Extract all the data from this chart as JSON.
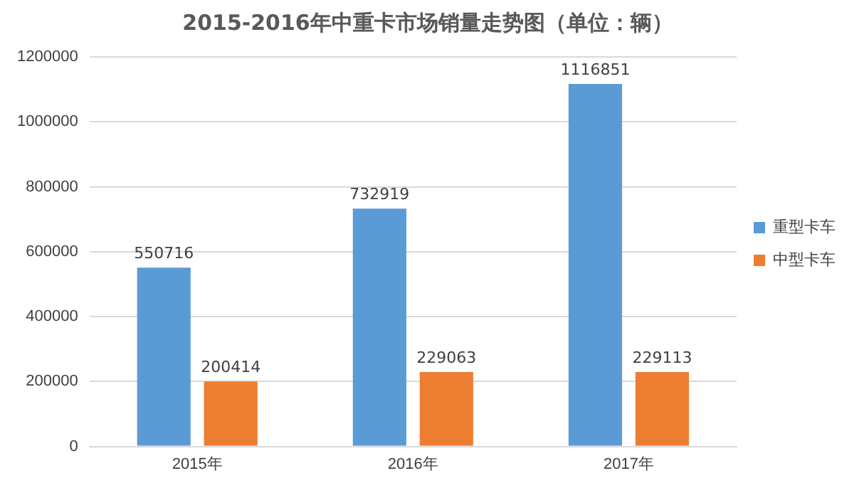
{
  "chart_data": {
    "type": "bar",
    "title": "2015-2016年中重卡市场销量走势图（单位：辆）",
    "categories": [
      "2015年",
      "2016年",
      "2017年"
    ],
    "series": [
      {
        "name": "重型卡车",
        "color": "#5b9bd5",
        "values": [
          550716,
          732919,
          1116851
        ]
      },
      {
        "name": "中型卡车",
        "color": "#ed7d31",
        "values": [
          200414,
          229063,
          229113
        ]
      }
    ],
    "ylim": [
      0,
      1200000
    ],
    "yticks": [
      0,
      200000,
      400000,
      600000,
      800000,
      1000000,
      1200000
    ],
    "grid": "y",
    "legend": "right",
    "data_labels": true
  }
}
